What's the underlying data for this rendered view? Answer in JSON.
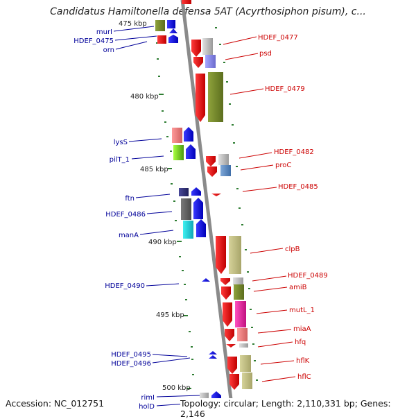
{
  "title": "Candidatus Hamiltonella defensa 5AT (Acyrthosiphon pisum), c...",
  "footer": {
    "accession": "Accession: NC_012751",
    "topology": "Topology: circular; Length: 2,110,331 bp; Genes: 2,146"
  },
  "kbp_labels": [
    "475 kbp",
    "480 kbp",
    "485 kbp",
    "490 kbp",
    "495 kbp",
    "500 kbp"
  ],
  "genes_left": [
    {
      "label": "murI"
    },
    {
      "label": "HDEF_0475"
    },
    {
      "label": "orn"
    },
    {
      "label": "lysS"
    },
    {
      "label": "pilT_1"
    },
    {
      "label": "ftn"
    },
    {
      "label": "HDEF_0486"
    },
    {
      "label": "manA"
    },
    {
      "label": "HDEF_0490"
    },
    {
      "label": "HDEF_0495"
    },
    {
      "label": "HDEF_0496"
    },
    {
      "label": "rimI"
    },
    {
      "label": "holD"
    }
  ],
  "genes_right": [
    {
      "label": "HDEF_0477"
    },
    {
      "label": "psd"
    },
    {
      "label": "HDEF_0479"
    },
    {
      "label": "HDEF_0482"
    },
    {
      "label": "proC"
    },
    {
      "label": "HDEF_0485"
    },
    {
      "label": "clpB"
    },
    {
      "label": "HDEF_0489"
    },
    {
      "label": "amiB"
    },
    {
      "label": "mutL_1"
    },
    {
      "label": "miaA"
    },
    {
      "label": "hfq"
    },
    {
      "label": "hflK"
    },
    {
      "label": "hflC"
    }
  ],
  "colors": {
    "forward_strand": "#0000ee",
    "reverse_strand": "#ee0000",
    "forward_label": "#000099",
    "reverse_label": "#cc0000",
    "backbone": "#888888",
    "tick": "#2e7d32"
  }
}
